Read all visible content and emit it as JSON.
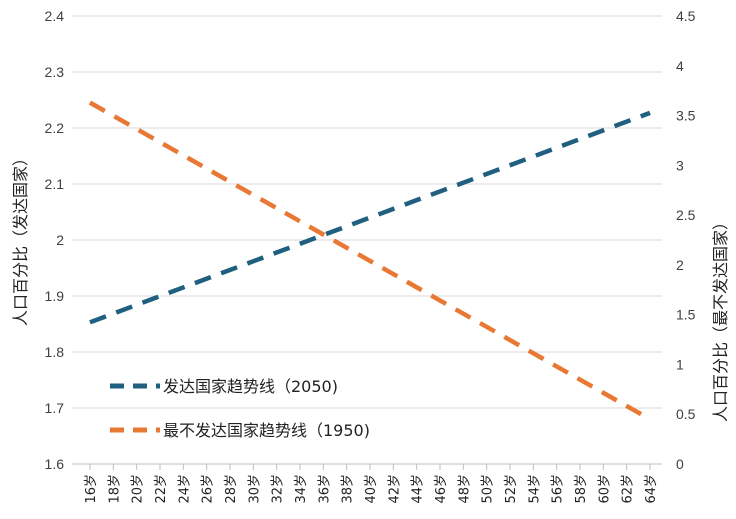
{
  "chart_data": {
    "type": "line",
    "categories": [
      "16岁",
      "18岁",
      "20岁",
      "22岁",
      "24岁",
      "26岁",
      "28岁",
      "30岁",
      "32岁",
      "34岁",
      "36岁",
      "38岁",
      "40岁",
      "42岁",
      "44岁",
      "46岁",
      "48岁",
      "50岁",
      "52岁",
      "54岁",
      "56岁",
      "58岁",
      "60岁",
      "62岁",
      "64岁"
    ],
    "y_left": {
      "label": "人口百分比（发达国家）",
      "ylim": [
        1.6,
        2.4
      ],
      "ticks": [
        "1.6",
        "1.7",
        "1.8",
        "1.9",
        "2",
        "2.1",
        "2.2",
        "2.3",
        "2.4"
      ]
    },
    "y_right": {
      "label": "人口百分比（最不发达国家）",
      "ylim": [
        0,
        4.5
      ],
      "ticks": [
        "0",
        "0.5",
        "1",
        "1.5",
        "2",
        "2.5",
        "3",
        "3.5",
        "4",
        "4.5"
      ]
    },
    "series": [
      {
        "name": "发达国家趋势线（2050)",
        "axis": "left",
        "color": "#1f5f7f",
        "start": 1.853,
        "end": 2.227
      },
      {
        "name": "最不发达国家趋势线（1950)",
        "axis": "right",
        "color": "#e87833",
        "start": 3.63,
        "end": 0.45
      }
    ],
    "grid": true,
    "legend": "bottom-left"
  }
}
